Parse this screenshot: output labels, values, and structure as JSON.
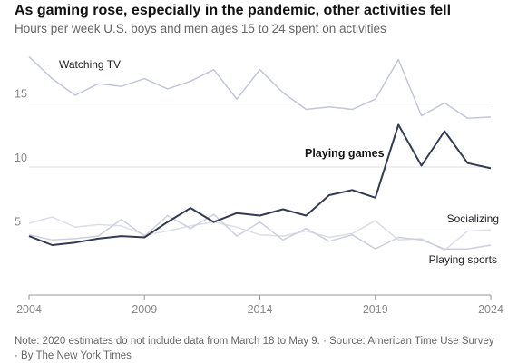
{
  "header": {
    "title": "As gaming rose, especially in the pandemic, other activities fell",
    "subtitle": "Hours per week U.S. boys and men ages 15 to 24 spent on activities"
  },
  "footer": {
    "note": "Note: 2020 estimates do not include data from March 18 to May 9.",
    "separator": "·",
    "source": "Source: American Time Use Survey",
    "credit": "By The New York Times"
  },
  "chart_data": {
    "type": "line",
    "x": [
      2004,
      2005,
      2006,
      2007,
      2008,
      2009,
      2010,
      2011,
      2012,
      2013,
      2014,
      2015,
      2016,
      2017,
      2018,
      2019,
      2020,
      2021,
      2022,
      2023,
      2024
    ],
    "xticks": [
      2004,
      2009,
      2014,
      2019,
      2024
    ],
    "xtick_labels": [
      "2004",
      "2009",
      "2014",
      "2019",
      "2024"
    ],
    "yticks": [
      5,
      10,
      15
    ],
    "ytick_labels": [
      "5",
      "10",
      "15"
    ],
    "xlim": [
      2004,
      2024
    ],
    "ylim": [
      0,
      19
    ],
    "grid": "horizontal",
    "legend": "none (direct labels)",
    "series": [
      {
        "name": "Watching TV",
        "color": "#c2c6d6",
        "emphasis": false,
        "values": [
          18.6,
          16.9,
          15.6,
          16.5,
          16.3,
          16.9,
          16.1,
          16.7,
          17.6,
          15.3,
          17.6,
          15.8,
          14.5,
          14.7,
          14.5,
          15.3,
          18.4,
          14.0,
          15.0,
          13.8,
          13.9
        ]
      },
      {
        "name": "Playing games",
        "color": "#353a54",
        "emphasis": true,
        "values": [
          4.6,
          3.9,
          4.1,
          4.4,
          4.6,
          4.5,
          5.7,
          6.8,
          5.7,
          6.4,
          6.2,
          6.7,
          6.2,
          7.8,
          8.2,
          7.6,
          13.3,
          10.1,
          12.8,
          10.3,
          9.9
        ]
      },
      {
        "name": "Socializing",
        "color": "#dcdee6",
        "emphasis": false,
        "values": [
          5.6,
          6.1,
          5.3,
          5.5,
          5.4,
          4.7,
          5.0,
          5.4,
          5.7,
          5.3,
          4.7,
          4.6,
          5.0,
          4.5,
          4.8,
          5.8,
          4.3,
          4.4,
          3.5,
          5.0,
          5.1
        ]
      },
      {
        "name": "Playing sports",
        "color": "#cdd0dc",
        "emphasis": false,
        "values": [
          4.7,
          4.3,
          4.4,
          4.6,
          5.9,
          4.6,
          6.2,
          5.2,
          6.3,
          4.6,
          5.7,
          4.3,
          5.2,
          4.2,
          4.7,
          3.6,
          4.5,
          4.3,
          3.6,
          3.6,
          3.9
        ]
      }
    ]
  }
}
